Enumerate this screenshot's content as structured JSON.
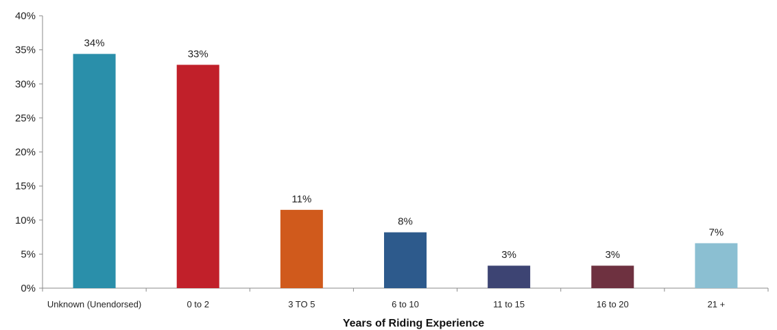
{
  "chart_data": {
    "type": "bar",
    "title": "",
    "xlabel": "Years of Riding Experience",
    "ylabel": "",
    "ylim": [
      0,
      40
    ],
    "y_ticks": [
      {
        "value": 0,
        "label": "0%"
      },
      {
        "value": 5,
        "label": "5%"
      },
      {
        "value": 10,
        "label": "10%"
      },
      {
        "value": 15,
        "label": "15%"
      },
      {
        "value": 20,
        "label": "20%"
      },
      {
        "value": 25,
        "label": "25%"
      },
      {
        "value": 30,
        "label": "30%"
      },
      {
        "value": 35,
        "label": "35%"
      },
      {
        "value": 40,
        "label": "40%"
      }
    ],
    "grid": false,
    "legend": "none",
    "categories": [
      "Unknown (Unendorsed)",
      "0 to 2",
      "3 TO 5",
      "6 to 10",
      "11 to 15",
      "16 to 20",
      "21 +"
    ],
    "values": [
      34.4,
      32.8,
      11.5,
      8.2,
      3.3,
      3.3,
      6.6
    ],
    "data_labels": [
      "34%",
      "33%",
      "11%",
      "8%",
      "3%",
      "3%",
      "7%"
    ],
    "colors": [
      "#2a8faa",
      "#c1202a",
      "#d05a1c",
      "#2d5a8c",
      "#3d4473",
      "#6e3140",
      "#8bbfd2"
    ]
  }
}
